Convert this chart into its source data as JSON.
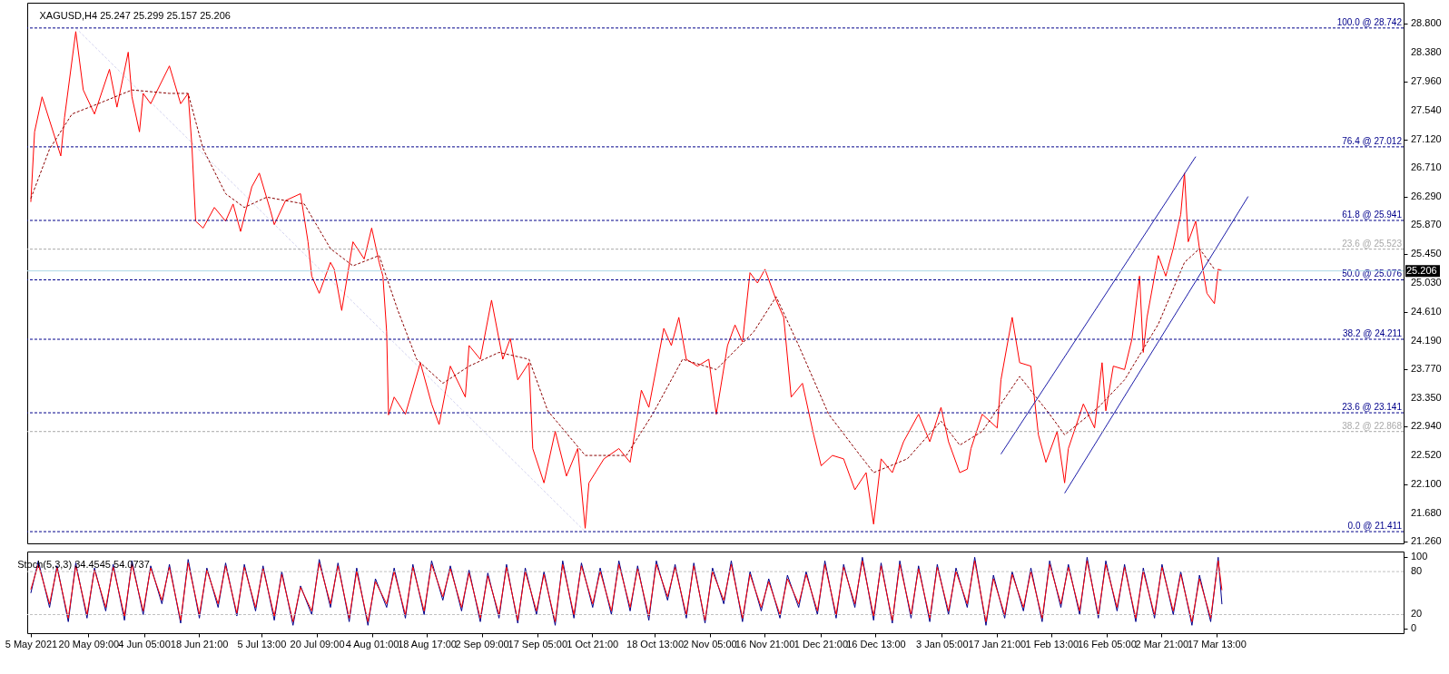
{
  "chart_data": [
    {
      "type": "line",
      "title": "XAGUSD,H4  25.247 25.299 25.157 25.206",
      "xlim": [
        "2021-05-04T01:00",
        "2022-05-06T12:00"
      ],
      "ylim": [
        21.24,
        29.11
      ],
      "yticks": [
        {
          "value": 21.26,
          "label": "21.260"
        },
        {
          "value": 21.68,
          "label": "21.680"
        },
        {
          "value": 22.1,
          "label": "22.100"
        },
        {
          "value": 22.52,
          "label": "22.520"
        },
        {
          "value": 22.94,
          "label": "22.940"
        },
        {
          "value": 23.35,
          "label": "23.350"
        },
        {
          "value": 23.77,
          "label": "23.770"
        },
        {
          "value": 24.19,
          "label": "24.190"
        },
        {
          "value": 24.61,
          "label": "24.610"
        },
        {
          "value": 25.03,
          "label": "25.030"
        },
        {
          "value": 25.45,
          "label": "25.450"
        },
        {
          "value": 25.87,
          "label": "25.870"
        },
        {
          "value": 26.29,
          "label": "26.290"
        },
        {
          "value": 26.71,
          "label": "26.710"
        },
        {
          "value": 27.12,
          "label": "27.120"
        },
        {
          "value": 27.54,
          "label": "27.540"
        },
        {
          "value": 27.96,
          "label": "27.960"
        },
        {
          "value": 28.38,
          "label": "28.380"
        },
        {
          "value": 28.8,
          "label": "28.800"
        }
      ],
      "tick_labels": "y",
      "grid": false,
      "series": [
        {
          "color": "#d4d4f0",
          "line_style": "dashed",
          "x": [
            "2021-05-17",
            "2021-09-30"
          ],
          "values": [
            28.742,
            21.411
          ]
        },
        {
          "color": "#ff0000",
          "x": [
            "2021-05-05",
            "2021-05-06",
            "2021-05-08",
            "2021-05-13",
            "2021-05-14",
            "2021-05-17",
            "2021-05-19",
            "2021-05-22",
            "2021-05-26",
            "2021-05-28",
            "2021-05-31",
            "2021-06-01",
            "2021-06-03",
            "2021-06-04",
            "2021-06-06",
            "2021-06-11",
            "2021-06-14",
            "2021-06-16",
            "2021-06-17",
            "2021-06-18",
            "2021-06-20",
            "2021-06-23",
            "2021-06-26",
            "2021-06-28",
            "2021-06-30",
            "2021-07-03",
            "2021-07-05",
            "2021-07-08",
            "2021-07-09",
            "2021-07-12",
            "2021-07-16",
            "2021-07-18",
            "2021-07-19",
            "2021-07-21",
            "2021-07-24",
            "2021-07-25",
            "2021-07-27",
            "2021-07-30",
            "2021-08-02",
            "2021-08-04",
            "2021-08-06",
            "2021-08-07",
            "2021-08-08",
            "2021-08-08T12:00",
            "2021-08-10",
            "2021-08-13",
            "2021-08-17",
            "2021-08-20",
            "2021-08-22",
            "2021-08-25",
            "2021-08-29",
            "2021-08-30",
            "2021-09-02",
            "2021-09-05",
            "2021-09-08",
            "2021-09-10",
            "2021-09-12",
            "2021-09-15",
            "2021-09-16",
            "2021-09-19",
            "2021-09-22",
            "2021-09-25",
            "2021-09-28",
            "2021-09-30",
            "2021-10-01",
            "2021-10-05",
            "2021-10-09",
            "2021-10-12",
            "2021-10-15",
            "2021-10-17",
            "2021-10-21",
            "2021-10-23",
            "2021-10-25",
            "2021-10-27",
            "2021-10-30",
            "2021-11-02",
            "2021-11-04",
            "2021-11-07",
            "2021-11-09",
            "2021-11-11",
            "2021-11-13",
            "2021-11-15",
            "2021-11-17",
            "2021-11-20",
            "2021-11-22",
            "2021-11-24",
            "2021-11-27",
            "2021-11-30",
            "2021-12-02",
            "2021-12-05",
            "2021-12-08",
            "2021-12-11",
            "2021-12-14",
            "2021-12-16",
            "2021-12-18",
            "2021-12-21",
            "2021-12-24",
            "2021-12-28",
            "2021-12-31",
            "2022-01-03",
            "2022-01-05",
            "2022-01-08",
            "2022-01-10",
            "2022-01-11",
            "2022-01-14",
            "2022-01-18",
            "2022-01-19",
            "2022-01-22",
            "2022-01-24",
            "2022-01-27",
            "2022-01-29",
            "2022-01-31",
            "2022-02-03",
            "2022-02-05",
            "2022-02-06",
            "2022-02-10",
            "2022-02-13",
            "2022-02-15",
            "2022-02-16",
            "2022-02-18",
            "2022-02-21",
            "2022-02-23",
            "2022-02-25",
            "2022-02-26",
            "2022-02-27",
            "2022-03-02",
            "2022-03-04",
            "2022-03-06",
            "2022-03-08",
            "2022-03-09",
            "2022-03-10",
            "2022-03-12",
            "2022-03-13",
            "2022-03-15",
            "2022-03-17",
            "2022-03-18",
            "2022-03-19"
          ],
          "values": [
            26.21,
            27.23,
            27.74,
            26.88,
            27.44,
            28.69,
            27.84,
            27.49,
            28.14,
            27.59,
            28.39,
            27.74,
            27.23,
            27.79,
            27.64,
            28.19,
            27.64,
            27.79,
            27.03,
            25.93,
            25.83,
            26.13,
            25.93,
            26.18,
            25.78,
            26.43,
            26.63,
            26.08,
            25.88,
            26.23,
            26.33,
            25.63,
            25.13,
            24.88,
            25.33,
            25.23,
            24.63,
            25.63,
            25.38,
            25.83,
            25.33,
            25.13,
            24.32,
            23.11,
            23.37,
            23.12,
            23.87,
            23.27,
            22.97,
            23.82,
            23.37,
            24.12,
            23.92,
            24.78,
            23.92,
            24.22,
            23.62,
            23.87,
            22.62,
            22.12,
            22.87,
            22.22,
            22.62,
            21.46,
            22.12,
            22.47,
            22.62,
            22.42,
            23.47,
            23.22,
            24.37,
            24.12,
            24.53,
            23.92,
            23.82,
            23.92,
            23.12,
            24.12,
            24.42,
            24.17,
            25.18,
            25.03,
            25.23,
            24.78,
            24.53,
            23.37,
            23.57,
            22.82,
            22.37,
            22.52,
            22.47,
            22.02,
            22.27,
            21.52,
            22.47,
            22.27,
            22.72,
            23.12,
            22.72,
            23.22,
            22.72,
            22.27,
            22.32,
            22.62,
            23.12,
            22.92,
            23.62,
            24.53,
            23.87,
            23.82,
            22.82,
            22.42,
            22.87,
            22.12,
            22.62,
            23.27,
            22.92,
            23.87,
            23.17,
            23.82,
            23.77,
            24.22,
            25.13,
            24.02,
            24.53,
            25.43,
            25.13,
            25.53,
            26.03,
            26.63,
            25.63,
            25.93,
            25.53,
            24.88,
            24.73,
            25.23,
            25.21
          ]
        },
        {
          "color": "#8b0000",
          "line_style": "dashed",
          "x": [
            "2021-05-05",
            "2021-05-10",
            "2021-05-16",
            "2021-05-23",
            "2021-06-01",
            "2021-06-11",
            "2021-06-16",
            "2021-06-20",
            "2021-06-26",
            "2021-07-01",
            "2021-07-07",
            "2021-07-17",
            "2021-07-24",
            "2021-07-30",
            "2021-08-06",
            "2021-08-11",
            "2021-08-16",
            "2021-08-23",
            "2021-08-30",
            "2021-09-07",
            "2021-09-15",
            "2021-09-20",
            "2021-09-30",
            "2021-10-11",
            "2021-10-18",
            "2021-10-26",
            "2021-11-04",
            "2021-11-14",
            "2021-11-20",
            "2021-11-26",
            "2021-12-04",
            "2021-12-11",
            "2021-12-16",
            "2021-12-25",
            "2022-01-03",
            "2022-01-08",
            "2022-01-14",
            "2022-01-24",
            "2022-02-01",
            "2022-02-05",
            "2022-02-14",
            "2022-02-21",
            "2022-03-02",
            "2022-03-09",
            "2022-03-13",
            "2022-03-17"
          ],
          "values": [
            26.26,
            26.98,
            27.49,
            27.64,
            27.84,
            27.79,
            27.79,
            26.98,
            26.33,
            26.13,
            26.28,
            26.18,
            25.53,
            25.28,
            25.43,
            24.63,
            23.92,
            23.57,
            23.82,
            24.02,
            23.92,
            23.17,
            22.52,
            22.52,
            23.12,
            23.92,
            23.77,
            24.32,
            24.83,
            24.12,
            23.12,
            22.62,
            22.27,
            22.47,
            23.02,
            22.67,
            22.87,
            23.67,
            23.12,
            22.82,
            23.22,
            23.62,
            24.43,
            25.33,
            25.53,
            25.23
          ]
        },
        {
          "color": "#1c1ca8",
          "x": [
            "2022-01-19",
            "2022-03-12"
          ],
          "values": [
            22.54,
            26.87
          ]
        },
        {
          "color": "#1c1ca8",
          "x": [
            "2022-02-05",
            "2022-03-26"
          ],
          "values": [
            21.97,
            26.29
          ]
        }
      ],
      "ref_lines": [
        {
          "axis": "y",
          "value": 28.742,
          "label": "100.0 @ 28.742",
          "color": "#00008b",
          "line_style": "dashed"
        },
        {
          "axis": "y",
          "value": 27.012,
          "label": "76.4 @ 27.012",
          "color": "#00008b",
          "line_style": "dashed"
        },
        {
          "axis": "y",
          "value": 25.941,
          "label": "61.8 @ 25.941",
          "color": "#00008b",
          "line_style": "dashed"
        },
        {
          "axis": "y",
          "value": 25.523,
          "label": "23.6 @ 25.523",
          "color": "#a9a9a9",
          "line_style": "dashed"
        },
        {
          "axis": "y",
          "value": 25.076,
          "label": "50.0 @ 25.076",
          "color": "#00008b",
          "line_style": "dashed"
        },
        {
          "axis": "y",
          "value": 24.211,
          "label": "38.2 @ 24.211",
          "color": "#00008b",
          "line_style": "dashed"
        },
        {
          "axis": "y",
          "value": 23.141,
          "label": "23.6 @ 23.141",
          "color": "#00008b",
          "line_style": "dashed"
        },
        {
          "axis": "y",
          "value": 22.868,
          "label": "38.2 @ 22.868",
          "color": "#a9a9a9",
          "line_style": "dashed"
        },
        {
          "axis": "y",
          "value": 21.411,
          "label": "0.0 @ 21.411",
          "color": "#00008b",
          "line_style": "dashed"
        },
        {
          "axis": "y",
          "value": 25.206,
          "label": "25.206",
          "color": "#add8e6",
          "line_style": "solid"
        }
      ]
    },
    {
      "type": "line",
      "title": "Stoch(5,3,3) 34.4545 54.0737",
      "xlim": [
        "2021-05-04T01:00",
        "2022-05-06T12:00"
      ],
      "xticks": [
        {
          "value": "2021-05-05T00:00",
          "label": "5 May 2021"
        },
        {
          "value": "2021-05-20T09:00",
          "label": "20 May 09:00"
        },
        {
          "value": "2021-06-04T05:00",
          "label": "4 Jun 05:00"
        },
        {
          "value": "2021-06-18T21:00",
          "label": "18 Jun 21:00"
        },
        {
          "value": "2021-07-05T13:00",
          "label": "5 Jul 13:00"
        },
        {
          "value": "2021-07-20T09:00",
          "label": "20 Jul 09:00"
        },
        {
          "value": "2021-08-04T01:00",
          "label": "4 Aug 01:00"
        },
        {
          "value": "2021-08-18T17:00",
          "label": "18 Aug 17:00"
        },
        {
          "value": "2021-09-02T09:00",
          "label": "2 Sep 09:00"
        },
        {
          "value": "2021-09-17T05:00",
          "label": "17 Sep 05:00"
        },
        {
          "value": "2021-10-01T21:00",
          "label": "1 Oct 21:00"
        },
        {
          "value": "2021-10-18T13:00",
          "label": "18 Oct 13:00"
        },
        {
          "value": "2021-11-02T05:00",
          "label": "2 Nov 05:00"
        },
        {
          "value": "2021-11-16T21:00",
          "label": "16 Nov 21:00"
        },
        {
          "value": "2021-12-01T21:00",
          "label": "1 Dec 21:00"
        },
        {
          "value": "2021-12-16T13:00",
          "label": "16 Dec 13:00"
        },
        {
          "value": "2022-01-03T05:00",
          "label": "3 Jan 05:00"
        },
        {
          "value": "2022-01-17T21:00",
          "label": "17 Jan 21:00"
        },
        {
          "value": "2022-02-01T13:00",
          "label": "1 Feb 13:00"
        },
        {
          "value": "2022-02-16T05:00",
          "label": "16 Feb 05:00"
        },
        {
          "value": "2022-03-02T21:00",
          "label": "2 Mar 21:00"
        },
        {
          "value": "2022-03-17T13:00",
          "label": "17 Mar 13:00"
        }
      ],
      "ylim": [
        -6,
        108
      ],
      "yticks": [
        0,
        20,
        80,
        100
      ],
      "grid": false,
      "x": [
        "2021-05-05",
        "2021-05-07",
        "2021-05-10",
        "2021-05-12",
        "2021-05-15",
        "2021-05-17",
        "2021-05-20",
        "2021-05-22",
        "2021-05-25",
        "2021-05-27",
        "2021-05-30",
        "2021-06-01",
        "2021-06-04",
        "2021-06-06",
        "2021-06-09",
        "2021-06-11",
        "2021-06-14",
        "2021-06-16",
        "2021-06-19",
        "2021-06-21",
        "2021-06-24",
        "2021-06-26",
        "2021-06-29",
        "2021-07-01",
        "2021-07-04",
        "2021-07-06",
        "2021-07-09",
        "2021-07-11",
        "2021-07-14",
        "2021-07-16",
        "2021-07-19",
        "2021-07-21",
        "2021-07-24",
        "2021-07-26",
        "2021-07-29",
        "2021-07-31",
        "2021-08-03",
        "2021-08-05",
        "2021-08-08",
        "2021-08-10",
        "2021-08-13",
        "2021-08-15",
        "2021-08-18",
        "2021-08-20",
        "2021-08-23",
        "2021-08-25",
        "2021-08-28",
        "2021-08-30",
        "2021-09-02",
        "2021-09-04",
        "2021-09-07",
        "2021-09-09",
        "2021-09-12",
        "2021-09-14",
        "2021-09-17",
        "2021-09-19",
        "2021-09-22",
        "2021-09-24",
        "2021-09-27",
        "2021-09-29",
        "2021-10-02",
        "2021-10-04",
        "2021-10-07",
        "2021-10-09",
        "2021-10-12",
        "2021-10-14",
        "2021-10-17",
        "2021-10-19",
        "2021-10-22",
        "2021-10-24",
        "2021-10-27",
        "2021-10-29",
        "2021-11-01",
        "2021-11-03",
        "2021-11-06",
        "2021-11-08",
        "2021-11-11",
        "2021-11-13",
        "2021-11-16",
        "2021-11-18",
        "2021-11-21",
        "2021-11-23",
        "2021-11-26",
        "2021-11-28",
        "2021-12-01",
        "2021-12-03",
        "2021-12-06",
        "2021-12-08",
        "2021-12-11",
        "2021-12-13",
        "2021-12-16",
        "2021-12-18",
        "2021-12-21",
        "2021-12-23",
        "2021-12-26",
        "2021-12-28",
        "2021-12-31",
        "2022-01-02",
        "2022-01-05",
        "2022-01-07",
        "2022-01-10",
        "2022-01-12",
        "2022-01-15",
        "2022-01-17",
        "2022-01-20",
        "2022-01-22",
        "2022-01-25",
        "2022-01-27",
        "2022-01-30",
        "2022-02-01",
        "2022-02-04",
        "2022-02-06",
        "2022-02-09",
        "2022-02-11",
        "2022-02-14",
        "2022-02-16",
        "2022-02-19",
        "2022-02-21",
        "2022-02-24",
        "2022-02-26",
        "2022-03-01",
        "2022-03-03",
        "2022-03-06",
        "2022-03-08",
        "2022-03-11",
        "2022-03-13",
        "2022-03-16",
        "2022-03-18",
        "2022-03-19"
      ],
      "series": [
        {
          "color": "#00008b",
          "values": [
            50,
            95,
            30,
            88,
            10,
            92,
            15,
            85,
            25,
            90,
            12,
            95,
            20,
            88,
            35,
            90,
            8,
            97,
            15,
            85,
            30,
            92,
            18,
            90,
            25,
            88,
            12,
            80,
            5,
            60,
            20,
            97,
            30,
            92,
            10,
            85,
            5,
            70,
            30,
            85,
            15,
            90,
            20,
            95,
            40,
            88,
            25,
            82,
            10,
            78,
            15,
            90,
            8,
            85,
            20,
            80,
            5,
            95,
            15,
            92,
            30,
            85,
            20,
            95,
            25,
            88,
            12,
            95,
            40,
            90,
            15,
            92,
            8,
            85,
            35,
            95,
            10,
            80,
            25,
            70,
            15,
            75,
            30,
            80,
            20,
            95,
            15,
            90,
            30,
            100,
            12,
            92,
            8,
            95,
            15,
            88,
            10,
            90,
            20,
            85,
            30,
            100,
            5,
            75,
            15,
            80,
            25,
            85,
            10,
            95,
            30,
            90,
            20,
            100,
            15,
            95,
            25,
            90,
            10,
            85,
            15,
            90,
            20,
            80,
            5,
            75,
            10,
            100,
            34.4545
          ]
        },
        {
          "color": "#ff0000",
          "values": [
            55,
            90,
            35,
            85,
            15,
            88,
            20,
            82,
            30,
            86,
            18,
            90,
            25,
            85,
            40,
            86,
            12,
            92,
            20,
            82,
            35,
            88,
            22,
            86,
            30,
            84,
            18,
            76,
            10,
            58,
            25,
            92,
            35,
            88,
            15,
            80,
            10,
            66,
            35,
            80,
            20,
            86,
            25,
            90,
            45,
            84,
            30,
            78,
            15,
            74,
            20,
            86,
            12,
            80,
            25,
            76,
            10,
            90,
            20,
            88,
            35,
            80,
            25,
            90,
            30,
            84,
            18,
            90,
            45,
            86,
            20,
            88,
            12,
            80,
            40,
            90,
            15,
            76,
            30,
            66,
            20,
            70,
            35,
            76,
            25,
            90,
            20,
            86,
            35,
            95,
            18,
            88,
            12,
            90,
            20,
            84,
            15,
            86,
            25,
            80,
            35,
            95,
            10,
            70,
            20,
            76,
            30,
            80,
            15,
            90,
            35,
            86,
            25,
            95,
            20,
            90,
            30,
            86,
            15,
            80,
            20,
            86,
            25,
            76,
            10,
            70,
            15,
            95,
            54.0737
          ]
        }
      ],
      "ref_lines": [
        {
          "axis": "y",
          "value": 20,
          "color": "#c0c0c0",
          "line_style": "dashed"
        },
        {
          "axis": "y",
          "value": 80,
          "color": "#c0c0c0",
          "line_style": "dashed"
        }
      ]
    }
  ]
}
